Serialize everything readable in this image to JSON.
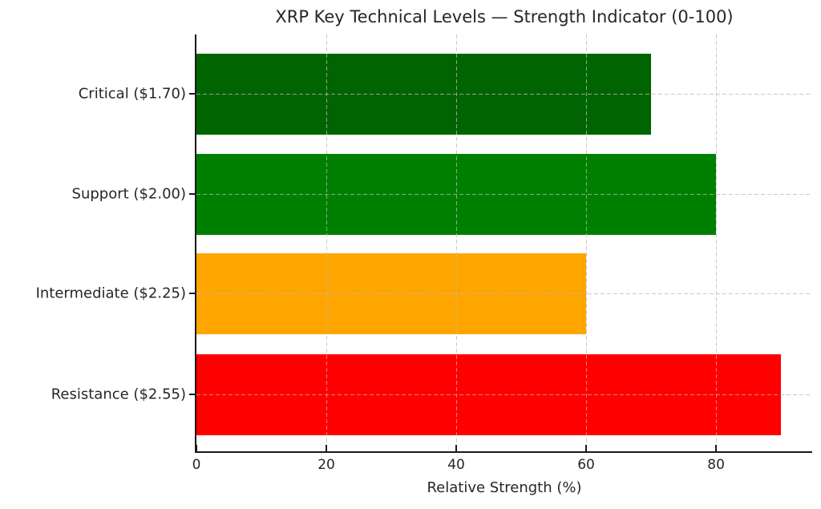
{
  "chart_data": {
    "type": "bar",
    "orientation": "horizontal",
    "title": "XRP Key Technical Levels — Strength Indicator (0-100)",
    "xlabel": "Relative Strength (%)",
    "ylabel": "",
    "categories": [
      "Critical ($1.70)",
      "Support ($2.00)",
      "Intermediate ($2.25)",
      "Resistance ($2.55)"
    ],
    "values": [
      70,
      80,
      60,
      90
    ],
    "bar_colors": [
      "#006400",
      "#008000",
      "#FFA500",
      "#FF0000"
    ],
    "xlim": [
      0,
      94.8
    ],
    "xticks": [
      0,
      20,
      40,
      60,
      80
    ],
    "grid": "dashed gridlines on both axes, drawn over bars",
    "legend_position": "none"
  },
  "style_colors": {
    "background": "#ffffff",
    "text": "#262626",
    "spine": "#1a1a1a",
    "grid": "#b9b9b9"
  }
}
